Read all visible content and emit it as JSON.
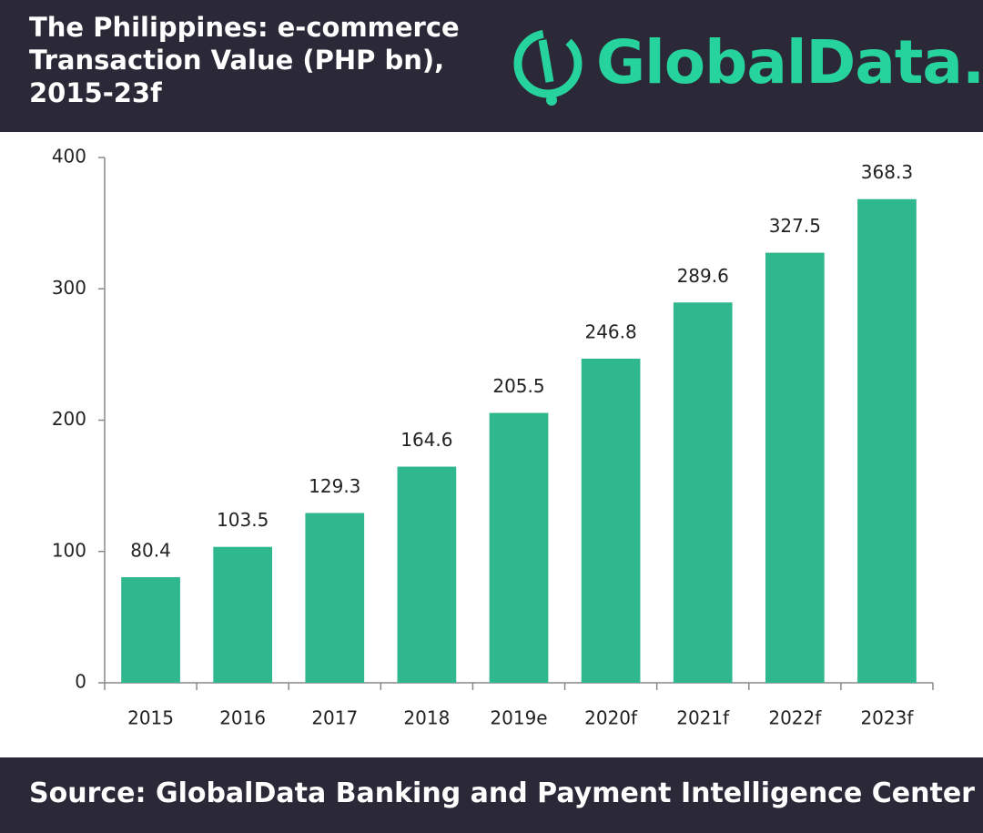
{
  "chart_data": {
    "type": "bar",
    "title": "The Philippines: e-commerce Transaction Value (PHP bn), 2015-23f",
    "categories": [
      "2015",
      "2016",
      "2017",
      "2018",
      "2019e",
      "2020f",
      "2021f",
      "2022f",
      "2023f"
    ],
    "values": [
      80.4,
      103.5,
      129.3,
      164.6,
      205.5,
      246.8,
      289.6,
      327.5,
      368.3
    ],
    "color": "#2fb78d",
    "ylim": [
      0,
      400
    ],
    "yticks": [
      0,
      100,
      200,
      300,
      400
    ],
    "grid": false,
    "source": "Source: GlobalData Banking and Payment Intelligence Center"
  },
  "logo": "GlobalData."
}
